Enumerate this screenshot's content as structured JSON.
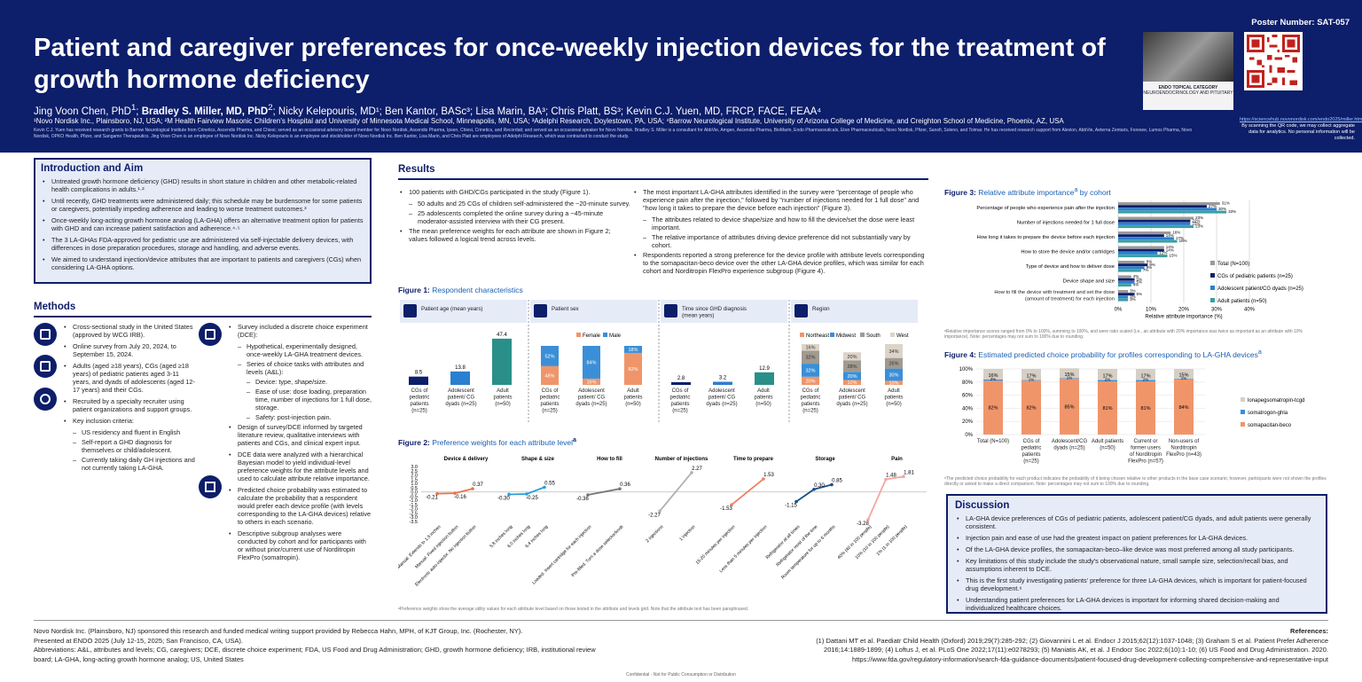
{
  "header": {
    "poster_number": "Poster Number: SAT-057",
    "title": "Patient and caregiver preferences for once-weekly injection devices for the treatment of growth hormone deficiency",
    "authors_pre": "Jing Voon Chen, PhD",
    "authors_bold": "Bradley S. Miller, MD, PhD",
    "authors_post": "; Nicky Kelepouris, MD¹; Ben Kantor, BASc³; Lisa Marin, BA³; Chris Platt, BS³; Kevin C.J. Yuen, MD, FRCP, FACE, FEAA⁴",
    "sup1": "1",
    "sup2": "2",
    "affiliations": "¹Novo Nordisk Inc., Plainsboro, NJ, USA; ²M Health Fairview Masonic Children's Hospital and University of Minnesota Medical School, Minneapolis, MN, USA; ³Adelphi Research, Doylestown, PA, USA; ⁴Barrow Neurological Institute, University of Arizona College of Medicine, and Creighton School of Medicine, Phoenix, AZ, USA",
    "disclosure": "Kevin C.J. Yuen has received research grants to Barrow Neurological Institute from Crinetics, Ascendis Pharma, and Chiesi; served as an occasional advisory board member for Novo Nordisk, Ascendis Pharma, Ipsen, Chiesi, Crinetics, and Recordati; and served as an occasional speaker for Novo Nordisk. Bradley S. Miller is a consultant for AbbVie, Amgen, Ascendis Pharma, BioMarin, Endo Pharmaceuticals, Eton Pharmaceuticals, Novo Nordisk, Pfizer, Sanofi, Soleno, and Tolmar. He has received research support from Alexion, AbbVie, Aeterna Zentaris, Foresee, Lumos Pharma, Novo Nordisk, OPKO Health, Pfizer, and Sangamo Therapeutics. Jing Voon Chen is an employee of Novo Nordisk Inc. Nicky Kelepouris is an employee and stockholder of Novo Nordisk Inc. Ben Kantor, Lisa Marin, and Chris Platt are employees of Adelphi Research, which was contracted to conduct the study.",
    "endo_caption_1": "ENDO TOPICAL CATEGORY",
    "endo_caption_2": "NEUROENDOCRINOLOGY AND PITUITARY",
    "qr_url": "https://sciencehub.novonordisk.com/endo2025/miller.html",
    "qr_note": "By scanning the QR code, we may collect aggregate data for analytics. No personal information will be collected."
  },
  "intro": {
    "heading": "Introduction and Aim",
    "bullets": [
      "Untreated growth hormone deficiency (GHD) results in short stature in children and other metabolic-related health complications in adults.¹·²",
      "Until recently, GHD treatments were administered daily; this schedule may be burdensome for some patients or caregivers, potentially impeding adherence and leading to worse treatment outcomes.³",
      "Once-weekly long-acting growth hormone analog (LA-GHA) offers an alternative treatment option for patients with GHD and can increase patient satisfaction and adherence.⁴·⁵",
      "The 3 LA-GHAs FDA-approved for pediatric use are administered via self-injectable delivery devices, with differences in dose preparation procedures, storage and handling, and adverse events.",
      "We aimed to understand injection/device attributes that are important to patients and caregivers (CGs) when considering LA-GHA options."
    ]
  },
  "methods": {
    "heading": "Methods",
    "col1": [
      {
        "t": "b",
        "x": "Cross-sectional study in the United States (approved by WCG IRB)."
      },
      {
        "t": "b",
        "x": "Online survey from July 20, 2024, to September 15, 2024."
      },
      {
        "t": "b",
        "x": "Adults (aged ≥18 years), CGs (aged ≥18 years) of pediatric patients aged 3-11 years, and dyads of adolescents (aged 12-17 years) and their CGs."
      },
      {
        "t": "b",
        "x": "Recruited by a specialty recruiter using patient organizations and support groups."
      },
      {
        "t": "b",
        "x": "Key inclusion criteria:"
      },
      {
        "t": "s",
        "x": "US residency and fluent in English"
      },
      {
        "t": "s",
        "x": "Self-report a GHD diagnosis for themselves or child/adolescent."
      },
      {
        "t": "s",
        "x": "Currently taking daily GH injections and not currently taking LA-GHA."
      }
    ],
    "col2": [
      {
        "t": "b",
        "x": "Survey included a discrete choice experiment (DCE):"
      },
      {
        "t": "s",
        "x": "Hypothetical, experimentally designed, once-weekly LA-GHA treatment devices."
      },
      {
        "t": "s",
        "x": "Series of choice tasks with attributes and levels (A&L):"
      },
      {
        "t": "ss",
        "x": "Device: type, shape/size."
      },
      {
        "t": "ss",
        "x": "Ease of use: dose loading, preparation time, number of injections for 1 full dose, storage."
      },
      {
        "t": "ss",
        "x": "Safety: post-injection pain."
      },
      {
        "t": "b",
        "x": "Design of survey/DCE informed by targeted literature review, qualitative interviews with patients and CGs, and clinical expert input."
      },
      {
        "t": "b",
        "x": "DCE data were analyzed with a hierarchical Bayesian model to yield individual-level preference weights for the attribute levels and used to calculate attribute relative importance."
      },
      {
        "t": "b",
        "x": "Predicted choice probability was estimated to calculate the probability that a respondent would prefer each device profile (with levels corresponding to the LA-GHA devices) relative to others in each scenario."
      },
      {
        "t": "b",
        "x": "Descriptive subgroup analyses were conducted by cohort and for participants with or without prior/current use of Norditropin FlexPro (somatropin)."
      }
    ],
    "icons": [
      "monitor-icon",
      "calendar-icon",
      "people-icon",
      "clipboard-icon",
      "bar-chart-icon"
    ]
  },
  "results": {
    "heading": "Results",
    "col1": [
      {
        "t": "b",
        "x": "100 patients with GHD/CGs participated in the study (Figure 1)."
      },
      {
        "t": "s",
        "x": "50 adults and 25 CGs of children self-administered the ~20-minute survey."
      },
      {
        "t": "s",
        "x": "25 adolescents completed the online survey during a ~45-minute moderator-assisted interview with their CG present."
      },
      {
        "t": "b",
        "x": "The mean preference weights for each attribute are shown in Figure 2; values followed a logical trend across levels."
      }
    ],
    "col2": [
      {
        "t": "b",
        "x": "The most important LA-GHA attributes identified in the survey were \"percentage of people who experience pain after the injection,\" followed by \"number of injections needed for 1 full dose\" and \"how long it takes to prepare the device before each injection\" (Figure 3)."
      },
      {
        "t": "s",
        "x": "The attributes related to device shape/size and how to fill the device/set the dose were least important."
      },
      {
        "t": "s",
        "x": "The relative importance of attributes driving device preference did not substantially vary by cohort."
      },
      {
        "t": "b",
        "x": "Respondents reported a strong preference for the device profile with attribute levels corresponding to the somapacitan-beco device over the other LA-GHA device profiles, which was similar for each cohort and Norditropin FlexPro experience subgroup (Figure 4)."
      }
    ]
  },
  "figure1": {
    "label": "Figure 1:",
    "caption": "Respondent characteristics",
    "panels": [
      {
        "title": "Patient age (mean years)",
        "icon": "calendar-icon"
      },
      {
        "title": "Patient sex",
        "icon": "gender-icon"
      },
      {
        "title": "Time since GHD diagnosis (mean years)",
        "icon": "clock-icon"
      },
      {
        "title": "Region",
        "icon": "us-map-icon"
      }
    ],
    "groups": [
      "CGs of pediatric patients (n=25)",
      "Adolescent patient/ CG dyads (n=25)",
      "Adult patients (n=50)"
    ],
    "age": [
      8.5,
      13.8,
      47.4
    ],
    "sex_legend": [
      "Female",
      "Male"
    ],
    "sex_female": [
      48,
      16,
      82
    ],
    "sex_male": [
      52,
      84,
      18
    ],
    "diagnosis": [
      2.8,
      3.2,
      12.9
    ],
    "region_legend": [
      "Northeast",
      "Midwest",
      "South",
      "West"
    ],
    "region": [
      [
        20,
        32,
        32,
        16
      ],
      [
        12,
        20,
        28,
        20
      ],
      [
        10,
        30,
        26,
        34
      ]
    ]
  },
  "figure2": {
    "label": "Figure 2:",
    "caption": "Preference weights for each attribute level",
    "sup": "a",
    "yticks": [
      "3.0",
      "2.5",
      "2.0",
      "1.5",
      "1.0",
      "0.5",
      "0.0",
      "-0.5",
      "-1.0",
      "-1.5",
      "-2.0",
      "-2.5",
      "-3.0",
      "-3.5"
    ],
    "groups": [
      {
        "name": "Device & delivery",
        "levels": [
          "Manual. Extends to 1.5 inches",
          "Manual. Fixed injection button",
          "Electronic auto-injector. No injection button"
        ],
        "values": [
          -0.21,
          -0.16,
          0.37
        ],
        "color": "#e8734a"
      },
      {
        "name": "Shape & size",
        "levels": [
          "5.8 inches long",
          "6.0 inches long",
          "6.4 inches long"
        ],
        "values": [
          -0.3,
          -0.25,
          0.55
        ],
        "color": "#2a9fd6"
      },
      {
        "name": "How to fill",
        "levels": [
          "Loaded. Insert cartridge for each injection",
          "Pre-filled. Turn a dose selector/knob"
        ],
        "values": [
          -0.36,
          0.36
        ],
        "color": "#777777"
      },
      {
        "name": "Number of injections",
        "levels": [
          "2 injections",
          "1 injection"
        ],
        "values": [
          -2.27,
          2.27
        ],
        "color": "#b0b0b0"
      },
      {
        "name": "Time to prepare",
        "levels": [
          "15-20 minutes per injection",
          "Less than 5 minutes per injection"
        ],
        "values": [
          -1.53,
          1.53
        ],
        "color": "#f08060"
      },
      {
        "name": "Storage",
        "levels": [
          "Refrigerator at all times",
          "Refrigerator most of the time",
          "Room temperature for up to 6 months"
        ],
        "values": [
          -1.15,
          0.3,
          0.85
        ],
        "color": "#1a4f8a"
      },
      {
        "name": "Pain",
        "levels": [
          "40% (40 in 100 people)",
          "10% (10 in 100 people)",
          "1% (1 in 100 people)"
        ],
        "values": [
          -3.28,
          1.48,
          1.81
        ],
        "color": "#f4a6a0"
      }
    ],
    "labels": [
      "-0.21",
      "-0.16",
      "0.37",
      "-0.30",
      "-0.25",
      "0.55",
      "-0.36",
      "0.36",
      "-2.27",
      "2.27",
      "-1.53",
      "1.53",
      "-1.15",
      "0.30",
      "0.85",
      "-3.28",
      "1.48",
      "1.81"
    ],
    "note": "ᵃPreference weights show the average utility values for each attribute level based on those tested in the attribute and levels grid. Note that the attribute text has been paraphrased."
  },
  "figure3": {
    "label": "Figure 3:",
    "caption": "Relative attribute importance",
    "caption_tail": "by cohort",
    "sup": "a",
    "attributes": [
      "Percentage of people who experience pain after the injection",
      "Number of injections needed for 1 full dose",
      "How long it takes to prepare the device before each injection",
      "How to store the device and/or cartridges",
      "Type of device and how to deliver dose",
      "Device shape and size",
      "How to fill the device with treatment and set the dose (amount of treatment) for each injection"
    ],
    "series": [
      {
        "name": "Total (N=100)",
        "color": "#9a9a9a",
        "values": [
          31,
          23,
          16,
          14,
          8,
          4,
          3
        ]
      },
      {
        "name": "CGs of pediatric patients (n=25)",
        "color": "#0d1e6a",
        "values": [
          27,
          22,
          14,
          14,
          9,
          5,
          5
        ]
      },
      {
        "name": "Adolescent patient/CG dyads (n=25)",
        "color": "#2a7fd0",
        "values": [
          30,
          22,
          17,
          12,
          8,
          5,
          3
        ]
      },
      {
        "name": "Adult patients (n=50)",
        "color": "#3aa0a0",
        "values": [
          33,
          23,
          18,
          15,
          7,
          4,
          3
        ]
      }
    ],
    "xticks": [
      "0%",
      "10%",
      "20%",
      "30%",
      "40%"
    ],
    "xlabel": "Relative attribute importance (%)",
    "note": "ᵃRelative importance scores ranged from 0% to 100%, summing to 100%, and were ratio scaled (i.e., an attribute with 20% importance was twice as important as an attribute with 10% importance). Note: percentages may not sum to 100% due to rounding."
  },
  "figure4": {
    "label": "Figure 4:",
    "caption": "Estimated predicted choice probability for profiles corresponding to LA-GHA devices",
    "sup": "a",
    "categories": [
      "Total (N=100)",
      "CGs of pediatric patients (n=25)",
      "Adolescent/CG dyads (n=25)",
      "Adult patients (n=50)",
      "Current or former users of Norditropin FlexPro (n=57)",
      "Non-users of Norditropin FlexPro (n=43)"
    ],
    "somapacitan": [
      82,
      82,
      85,
      81,
      81,
      84
    ],
    "somatrogon": [
      2,
      1,
      1,
      2,
      2,
      1
    ],
    "lonapeg": [
      16,
      17,
      15,
      17,
      17,
      15
    ],
    "legend": [
      "lonapegsomatropin-tcgd",
      "somatrogon-ghla",
      "somapacitan-beco"
    ],
    "yticks": [
      "100%",
      "80%",
      "60%",
      "40%",
      "20%",
      "0%"
    ],
    "note": "ᵃThe predicted choice probability for each product indicates the probability of it being chosen relative to other products in the base case scenario; however, participants were not shown the profiles directly or asked to make a direct comparison. Note: percentages may not sum to 100% due to rounding."
  },
  "discussion": {
    "heading": "Discussion",
    "bullets": [
      "LA-GHA device preferences of CGs of pediatric patients, adolescent patient/CG dyads, and adult patients were generally consistent.",
      "Injection pain and ease of use had the greatest impact on patient preferences for LA-GHA devices.",
      "Of the LA-GHA device profiles, the somapacitan-beco–like device was most preferred among all study participants.",
      "Key limitations of this study include the study's observational nature, small sample size, selection/recall bias, and assumptions inherent to DCE.",
      "This is the first study investigating patients' preference for three LA-GHA devices, which is important for patient-focused drug development.⁶",
      "Understanding patient preferences for LA-GHA devices is important for informing shared decision-making and individualized healthcare choices."
    ]
  },
  "footer": {
    "line1": "Novo Nordisk Inc. (Plainsboro, NJ) sponsored this research and funded medical writing support provided by Rebecca Hahn, MPH, of KJT Group, Inc. (Rochester, NY).",
    "line2": "Presented at ENDO 2025 (July 12-15, 2025; San Francisco, CA, USA).",
    "line3": "Abbreviations: A&L, attributes and levels; CG, caregivers; DCE, discrete choice experiment; FDA, US Food and Drug Administration; GHD, growth hormone deficiency; IRB, institutional review board; LA-GHA, long-acting growth hormone analog; US, United States",
    "ref_title": "References:",
    "ref1": "(1) Dattani MT et al. Paediatr Child Health (Oxford) 2019;29(7):285-292; (2) Giovannini L et al. Endocr J 2015;62(12):1037-1048; (3) Graham S et al. Patient Prefer Adherence",
    "ref2": "2016;14:1889-1899; (4) Loftus J, et al. PLoS One 2022;17(11):e0278293; (5) Maniatis AK, et al. J Endocr Soc 2022;6(10):1-10; (6) US Food and Drug Administration. 2020.",
    "ref3": "https://www.fda.gov/regulatory-information/search-fda-guidance-documents/patient-focused-drug-development-collecting-comprehensive-and-representative-input",
    "confidential": "Confidential - Not for Public Consumption or Distribution"
  },
  "colors": {
    "navy": "#0d1e6a",
    "light_box": "#e6ebf8",
    "orange": "#f0956a",
    "blue": "#2a7fd0",
    "teal": "#2a8f88"
  }
}
